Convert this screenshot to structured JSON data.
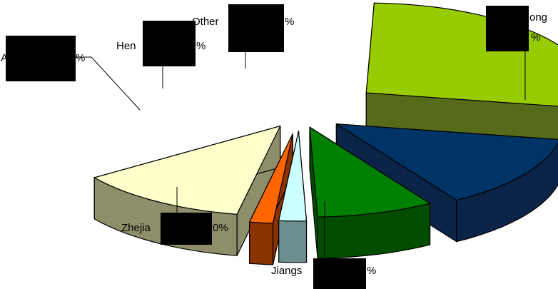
{
  "chart_data": {
    "type": "pie",
    "style": "3d-exploded",
    "legend": "none",
    "labels_visible": [
      "ong",
      "%",
      "Jiangs",
      "%",
      "Zhejia",
      "0%",
      "A",
      "%",
      "Hen",
      "%",
      "Other",
      "%"
    ],
    "slices": [
      {
        "visible_text": "ong%",
        "color": "#99cc00",
        "side": "#556b1a",
        "start_deg": -88,
        "end_deg": 10
      },
      {
        "visible_text": "Jiangs%",
        "color": "#003366",
        "side": "#0b2448",
        "start_deg": 10,
        "end_deg": 58
      },
      {
        "visible_text": "Zhejia0%",
        "color": "#008000",
        "side": "#004d00",
        "start_deg": 58,
        "end_deg": 88
      },
      {
        "visible_text": "A%",
        "color": "#ccffff",
        "side": "#6b8e8e",
        "start_deg": 88,
        "end_deg": 95
      },
      {
        "visible_text": "Hen%",
        "color": "#ff6600",
        "side": "#8b3300",
        "start_deg": 95,
        "end_deg": 101
      },
      {
        "visible_text": "Other%",
        "color": "#ffffcc",
        "side": "#8e8e6b",
        "start_deg": 101,
        "end_deg": 145
      }
    ]
  }
}
